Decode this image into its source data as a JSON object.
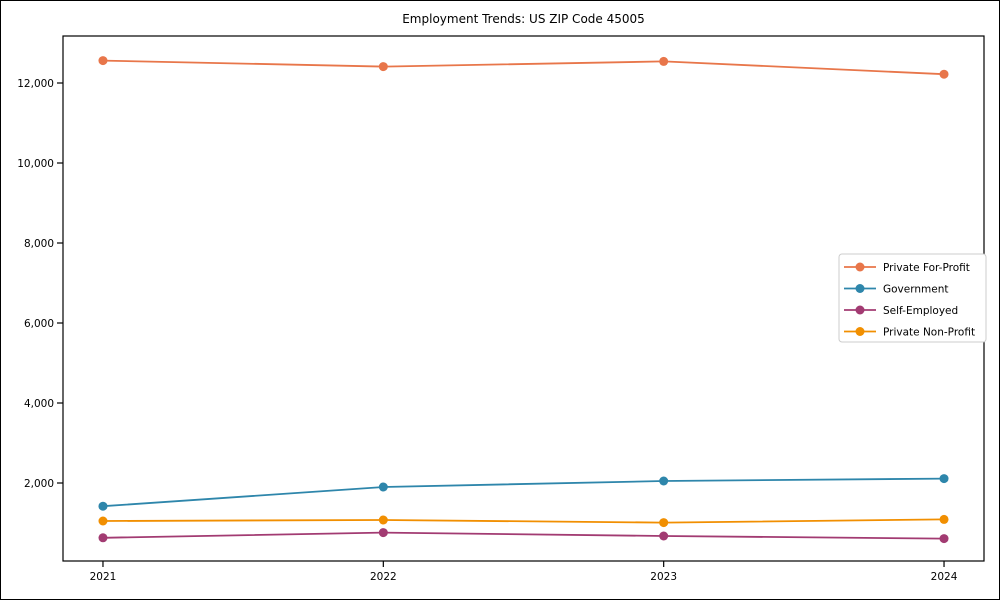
{
  "window": {
    "background_color": "#ffffff",
    "frame_color": "#000000"
  },
  "chart_data": {
    "type": "line",
    "title": "Employment Trends: US ZIP Code 45005",
    "xlabel": "",
    "ylabel": "",
    "categories": [
      "2021",
      "2022",
      "2023",
      "2024"
    ],
    "series": [
      {
        "name": "Private For-Profit",
        "color": "#E8764A",
        "values": [
          12560,
          12410,
          12540,
          12220
        ]
      },
      {
        "name": "Government",
        "color": "#2E86AB",
        "values": [
          1420,
          1900,
          2050,
          2110
        ]
      },
      {
        "name": "Self-Employed",
        "color": "#A23B72",
        "values": [
          630,
          760,
          675,
          610
        ]
      },
      {
        "name": "Private Non-Profit",
        "color": "#F18F01",
        "values": [
          1050,
          1075,
          1010,
          1090
        ]
      }
    ],
    "ylim": [
      50,
      13175
    ],
    "yticks": [
      2000,
      4000,
      6000,
      8000,
      10000,
      12000
    ],
    "ytick_labels": [
      "2,000",
      "4,000",
      "6,000",
      "8,000",
      "10,000",
      "12,000"
    ],
    "grid": false,
    "legend_position": "center-right",
    "legend_border_color": "#cccccc",
    "marker": "circle",
    "axis_color": "#000000"
  }
}
